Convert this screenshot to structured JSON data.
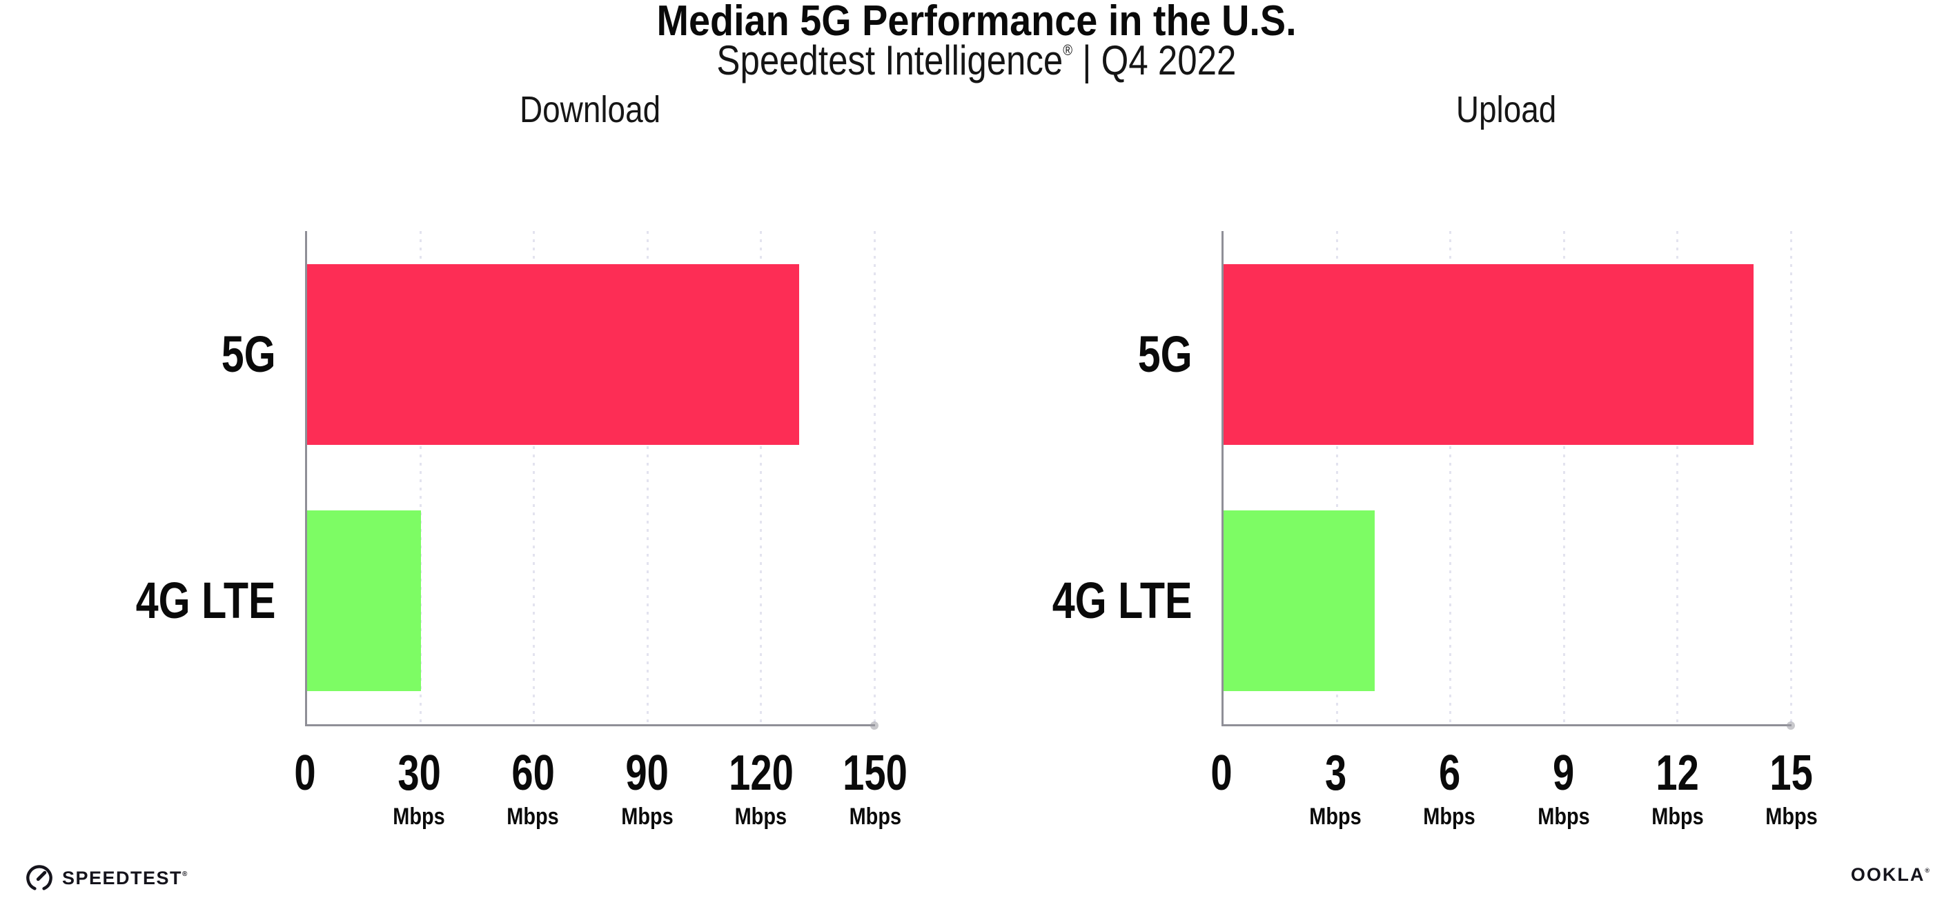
{
  "header": {
    "title": "Median 5G Performance in the U.S.",
    "subtitle": {
      "brand": "Speedtest Intelligence",
      "reg": "®",
      "rest": " | Q4 2022"
    }
  },
  "colors": {
    "bar_5g": "#FD2D55",
    "bar_4g_lte": "#7DFC64",
    "axis": "#8f8f97",
    "gridline": "#e3e3ef",
    "text": "#0a0a0a"
  },
  "chart_data": [
    {
      "type": "bar",
      "orientation": "horizontal",
      "title": "Download",
      "categories": [
        "5G",
        "4G LTE"
      ],
      "values": [
        130,
        30
      ],
      "bar_colors": [
        "#FD2D55",
        "#7DFC64"
      ],
      "xlim": [
        0,
        150
      ],
      "xticks": [
        0,
        30,
        60,
        90,
        120,
        150
      ],
      "tick_unit": "Mbps",
      "xlabel": "",
      "ylabel": "",
      "grid": "vertical-dotted",
      "legend": "none"
    },
    {
      "type": "bar",
      "orientation": "horizontal",
      "title": "Upload",
      "categories": [
        "5G",
        "4G LTE"
      ],
      "values": [
        14,
        4
      ],
      "bar_colors": [
        "#FD2D55",
        "#7DFC64"
      ],
      "xlim": [
        0,
        15
      ],
      "xticks": [
        0,
        3,
        6,
        9,
        12,
        15
      ],
      "tick_unit": "Mbps",
      "xlabel": "",
      "ylabel": "",
      "grid": "vertical-dotted",
      "legend": "none"
    }
  ],
  "footer": {
    "speedtest_text": "SPEEDTEST",
    "speedtest_reg": "®",
    "ookla_text": "OOKLA",
    "ookla_reg": "®"
  }
}
